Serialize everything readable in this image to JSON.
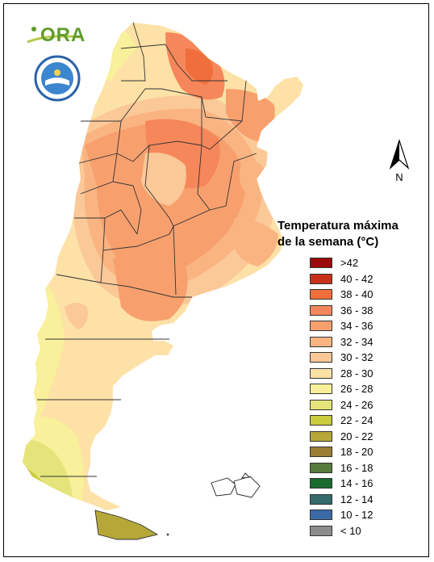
{
  "logo": {
    "text": "ORA",
    "icon": "ora-logo-icon"
  },
  "seal": {
    "icon": "agency-seal-icon"
  },
  "north_arrow": {
    "label": "N",
    "icon": "north-arrow-icon"
  },
  "legend": {
    "title_line1": "Temperatura máxima",
    "title_line2": "de la semana (°C)",
    "items": [
      {
        "label": ">42",
        "color": "#9b0a0a"
      },
      {
        "label": "40 - 42",
        "color": "#c8321a"
      },
      {
        "label": "38 - 40",
        "color": "#f06e3c"
      },
      {
        "label": "36 - 38",
        "color": "#f5875a"
      },
      {
        "label": "34 - 36",
        "color": "#f7a06e"
      },
      {
        "label": "32 - 34",
        "color": "#f9b482"
      },
      {
        "label": "30 - 32",
        "color": "#fbc898"
      },
      {
        "label": "28 - 30",
        "color": "#fde1a6"
      },
      {
        "label": "26 - 28",
        "color": "#f8f09a"
      },
      {
        "label": "24 - 26",
        "color": "#e4e47a"
      },
      {
        "label": "22 - 24",
        "color": "#c9cc3c"
      },
      {
        "label": "20 - 22",
        "color": "#b5a838"
      },
      {
        "label": "18 - 20",
        "color": "#9c7d35"
      },
      {
        "label": "16 - 18",
        "color": "#557a3a"
      },
      {
        "label": "14 - 16",
        "color": "#1a6b2e"
      },
      {
        "label": "12 - 14",
        "color": "#336b6b"
      },
      {
        "label": "10 - 12",
        "color": "#3a6aa8"
      },
      {
        "label": "< 10",
        "color": "#8c8c8c"
      }
    ]
  }
}
